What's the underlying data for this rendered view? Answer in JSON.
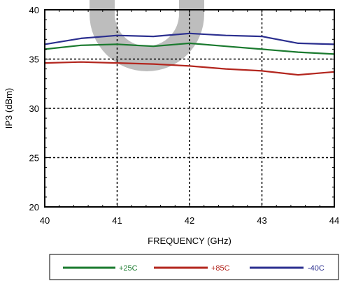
{
  "chart_data": {
    "type": "line",
    "xlabel": "FREQUENCY (GHz)",
    "ylabel": "IP3 (dBm)",
    "xlim": [
      40,
      44
    ],
    "ylim": [
      20,
      40
    ],
    "x_ticks": [
      40,
      41,
      42,
      43,
      44
    ],
    "y_ticks": [
      20,
      25,
      30,
      35,
      40
    ],
    "grid": true,
    "legend_position": "bottom",
    "x": [
      40,
      40.5,
      41,
      41.5,
      42,
      42.5,
      43,
      43.5,
      44
    ],
    "series": [
      {
        "name": "+25C",
        "color": "#1a7a2e",
        "values": [
          36.0,
          36.4,
          36.5,
          36.3,
          36.6,
          36.3,
          36.0,
          35.7,
          35.5
        ]
      },
      {
        "name": "+85C",
        "color": "#b3261e",
        "values": [
          34.6,
          34.7,
          34.6,
          34.5,
          34.3,
          34.0,
          33.8,
          33.4,
          33.7
        ]
      },
      {
        "name": "-40C",
        "color": "#2b2f8f",
        "values": [
          36.5,
          37.1,
          37.4,
          37.3,
          37.6,
          37.4,
          37.3,
          36.6,
          36.5
        ]
      }
    ]
  }
}
